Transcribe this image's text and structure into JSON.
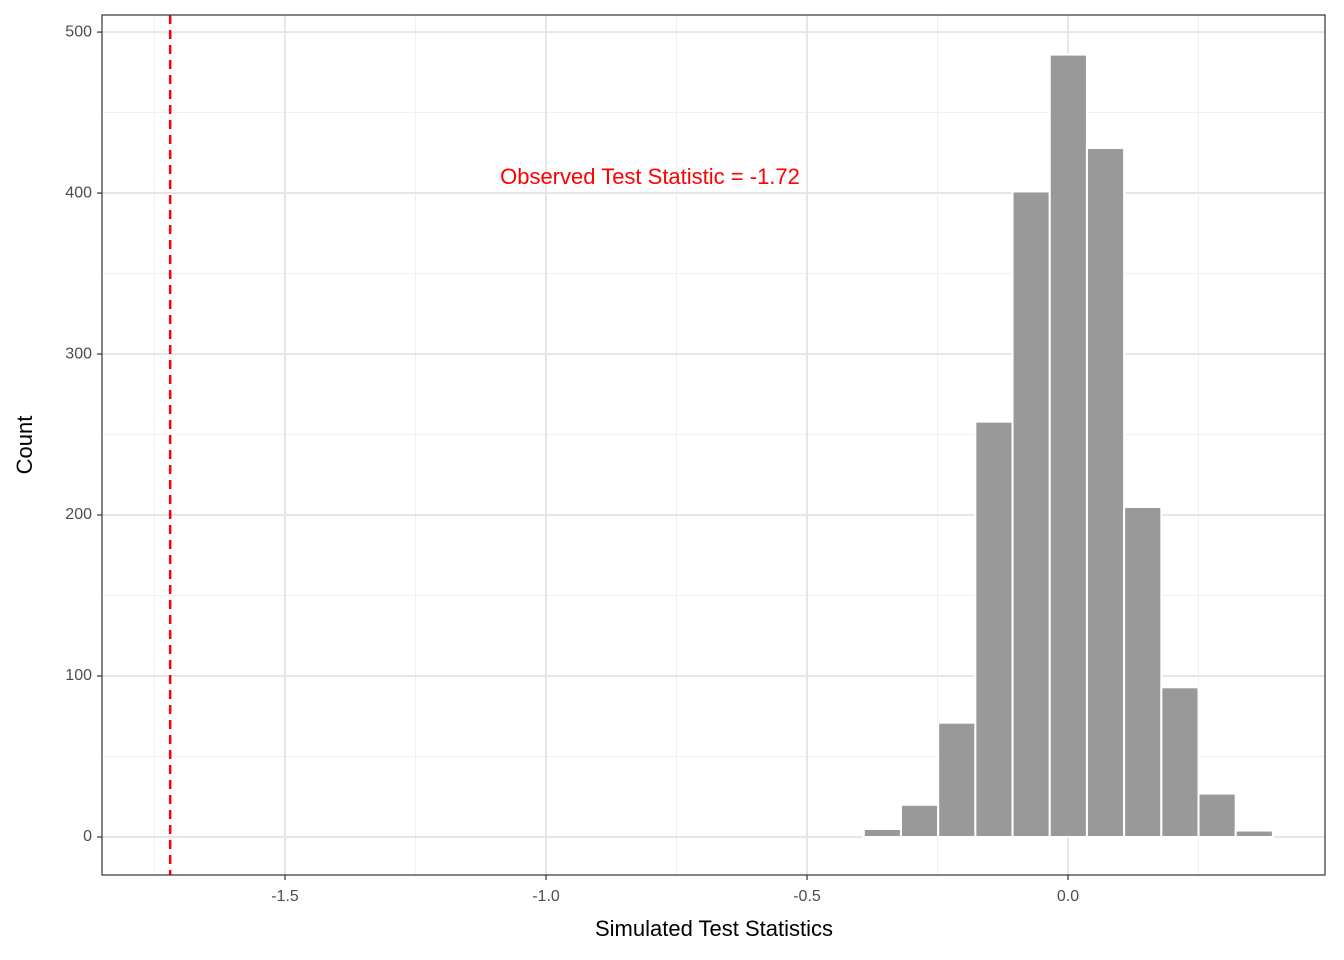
{
  "chart_data": {
    "type": "histogram",
    "x_label": "Simulated Test Statistics",
    "y_label": "Count",
    "bins": [
      -1.745,
      -1.67375,
      -1.6025,
      -1.53125,
      -1.46,
      -1.38875,
      -1.3175,
      -1.24625,
      -1.175,
      -1.10375,
      -1.0325,
      -0.96125,
      -0.89,
      -0.81875,
      -0.7475,
      -0.67625,
      -0.605,
      -0.53375,
      -0.4625,
      -0.39125,
      -0.32,
      -0.24875,
      -0.1775,
      -0.10625,
      -0.035,
      0.03625,
      0.1075,
      0.17875,
      0.25,
      0.32125,
      0.3925
    ],
    "values": [
      0,
      0,
      0,
      0,
      0,
      0,
      0,
      0,
      0,
      0,
      0,
      0,
      0,
      0,
      0,
      0,
      0,
      0,
      0,
      5,
      20,
      71,
      258,
      401,
      486,
      428,
      205,
      93,
      27,
      4
    ],
    "color": "#999999",
    "xlim": [
      -1.8506,
      0.4923
    ],
    "ylim": [
      -23.6,
      510.6
    ],
    "xticks": [
      {
        "value": -1.5,
        "label": "-1.5"
      },
      {
        "value": -1.0,
        "label": "-1.0"
      },
      {
        "value": -0.5,
        "label": "-0.5"
      },
      {
        "value": 0.0,
        "label": "0.0"
      }
    ],
    "yticks": [
      0,
      100,
      200,
      300,
      400,
      500
    ],
    "grid": true,
    "vline": {
      "value": -1.72,
      "color": "#ff0000",
      "label": "Observed Test Statistic = -1.72"
    }
  }
}
